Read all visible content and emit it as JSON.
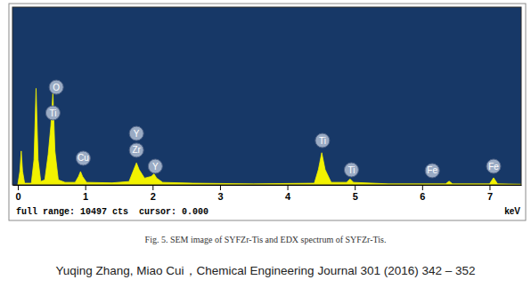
{
  "chart_data": {
    "type": "area",
    "x": [
      0.0,
      0.03,
      0.05,
      0.07,
      0.1,
      0.2,
      0.24,
      0.27,
      0.3,
      0.34,
      0.4,
      0.45,
      0.49,
      0.52,
      0.55,
      0.6,
      0.7,
      0.85,
      0.9,
      0.93,
      0.96,
      1.02,
      1.4,
      1.65,
      1.72,
      1.76,
      1.8,
      1.88,
      1.98,
      2.02,
      2.06,
      2.15,
      2.6,
      3.5,
      4.4,
      4.46,
      4.51,
      4.56,
      4.65,
      4.88,
      4.93,
      4.98,
      5.5,
      6.35,
      6.4,
      6.45,
      7.0,
      7.06,
      7.12,
      7.47
    ],
    "values": [
      50,
      800,
      2000,
      800,
      100,
      100,
      1500,
      5700,
      1500,
      200,
      300,
      1800,
      3500,
      5450,
      2000,
      300,
      150,
      150,
      500,
      790,
      500,
      150,
      120,
      200,
      900,
      1300,
      900,
      400,
      500,
      650,
      400,
      150,
      100,
      60,
      100,
      900,
      1900,
      900,
      150,
      150,
      350,
      150,
      60,
      60,
      220,
      60,
      60,
      420,
      60,
      40
    ],
    "color": "#f2f200",
    "xlim": [
      -0.08,
      7.47
    ],
    "xticks": [
      0,
      1,
      2,
      3,
      4,
      5,
      6,
      7
    ],
    "ylim": [
      0,
      10497
    ],
    "tick_labels": "x",
    "x_label": "keV",
    "status": "full range: 10497 cts  cursor: 0.000",
    "annotations": [
      {
        "text": "O",
        "x": 0.57,
        "y": 5770
      },
      {
        "text": "Ti",
        "x": 0.52,
        "y": 4250
      },
      {
        "text": "Cu",
        "x": 0.97,
        "y": 1575
      },
      {
        "text": "Y",
        "x": 1.76,
        "y": 3040
      },
      {
        "text": "Zr",
        "x": 1.76,
        "y": 2050
      },
      {
        "text": "Y",
        "x": 2.04,
        "y": 1100
      },
      {
        "text": "Ti",
        "x": 4.52,
        "y": 2620
      },
      {
        "text": "Ti",
        "x": 4.95,
        "y": 890
      },
      {
        "text": "Fe",
        "x": 6.15,
        "y": 840
      },
      {
        "text": "Fe",
        "x": 7.06,
        "y": 1100
      }
    ]
  },
  "caption": "Fig. 5. SEM image of SYFZr-Tis and EDX spectrum of SYFZr-Tis.",
  "source": "Yuqing Zhang, Miao Cui，Chemical Engineering Journal 301 (2016) 342 – 352"
}
